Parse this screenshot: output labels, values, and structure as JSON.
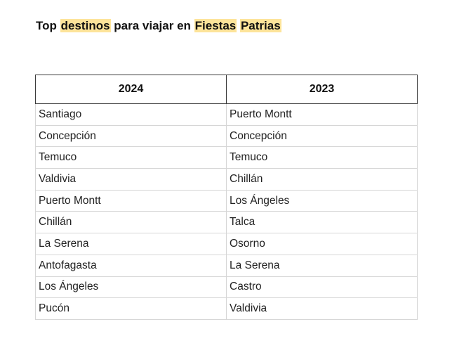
{
  "title": {
    "w1": "Top",
    "w2": "destinos",
    "w3": "para viajar en",
    "w4": "Fiestas",
    "w5": "Patrias"
  },
  "table": {
    "headers": [
      "2024",
      "2023"
    ],
    "rows": [
      [
        "Santiago",
        "Puerto Montt"
      ],
      [
        "Concepción",
        "Concepción"
      ],
      [
        "Temuco",
        "Temuco"
      ],
      [
        "Valdivia",
        "Chillán"
      ],
      [
        "Puerto Montt",
        "Los Ángeles"
      ],
      [
        "Chillán",
        "Talca"
      ],
      [
        "La Serena",
        "Osorno"
      ],
      [
        "Antofagasta",
        "La Serena"
      ],
      [
        "Los Ángeles",
        "Castro"
      ],
      [
        "Pucón",
        "Valdivia"
      ]
    ]
  },
  "colors": {
    "highlight": "#fde49a"
  }
}
